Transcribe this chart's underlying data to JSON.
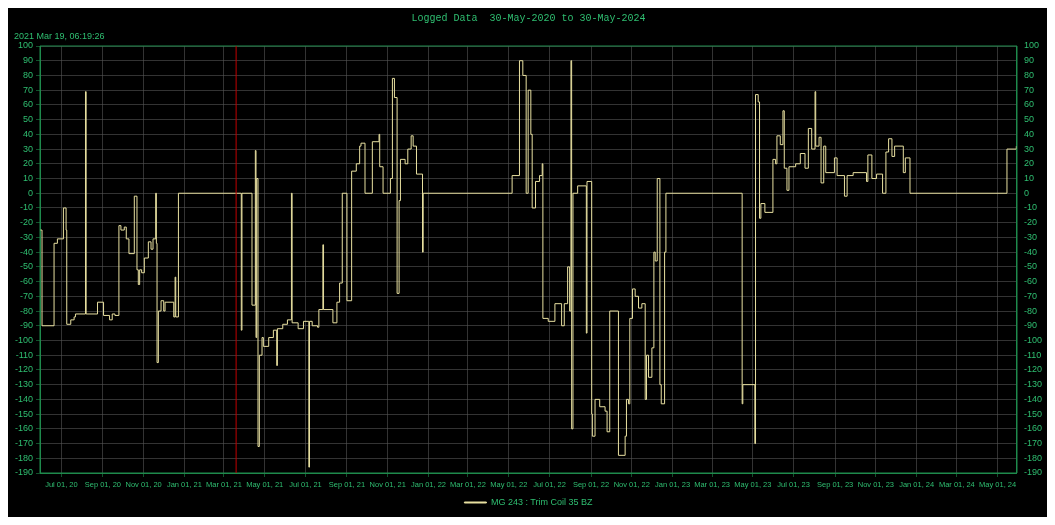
{
  "chart_data": {
    "type": "step",
    "title": "Logged Data  30-May-2020 to 30-May-2024",
    "xlim": [
      "2020-05-30",
      "2024-05-30"
    ],
    "xticks": [
      {
        "value": "2020-07-01",
        "label": "Jul 01, 20"
      },
      {
        "value": "2020-09-01",
        "label": "Sep 01, 20"
      },
      {
        "value": "2020-11-01",
        "label": "Nov 01, 20"
      },
      {
        "value": "2021-01-01",
        "label": "Jan 01, 21"
      },
      {
        "value": "2021-03-01",
        "label": "Mar 01, 21"
      },
      {
        "value": "2021-05-01",
        "label": "May 01, 21"
      },
      {
        "value": "2021-07-01",
        "label": "Jul 01, 21"
      },
      {
        "value": "2021-09-01",
        "label": "Sep 01, 21"
      },
      {
        "value": "2021-11-01",
        "label": "Nov 01, 21"
      },
      {
        "value": "2022-01-01",
        "label": "Jan 01, 22"
      },
      {
        "value": "2022-03-01",
        "label": "Mar 01, 22"
      },
      {
        "value": "2022-05-01",
        "label": "May 01, 22"
      },
      {
        "value": "2022-07-01",
        "label": "Jul 01, 22"
      },
      {
        "value": "2022-09-01",
        "label": "Sep 01, 22"
      },
      {
        "value": "2022-11-01",
        "label": "Nov 01, 22"
      },
      {
        "value": "2023-01-01",
        "label": "Jan 01, 23"
      },
      {
        "value": "2023-03-01",
        "label": "Mar 01, 23"
      },
      {
        "value": "2023-05-01",
        "label": "May 01, 23"
      },
      {
        "value": "2023-07-01",
        "label": "Jul 01, 23"
      },
      {
        "value": "2023-09-01",
        "label": "Sep 01, 23"
      },
      {
        "value": "2023-11-01",
        "label": "Nov 01, 23"
      },
      {
        "value": "2024-01-01",
        "label": "Jan 01, 24"
      },
      {
        "value": "2024-03-01",
        "label": "Mar 01, 24"
      },
      {
        "value": "2024-05-01",
        "label": "May 01, 24"
      }
    ],
    "ylim": [
      -190,
      100
    ],
    "yticks": [
      -190,
      -180,
      -170,
      -160,
      -150,
      -140,
      -130,
      -120,
      -110,
      -100,
      -90,
      -80,
      -70,
      -60,
      -50,
      -40,
      -30,
      -20,
      -10,
      0,
      10,
      20,
      30,
      40,
      50,
      60,
      70,
      80,
      90,
      100
    ],
    "y2lim": [
      -190,
      100
    ],
    "y2ticks": [
      -190,
      -180,
      -170,
      -160,
      -150,
      -140,
      -130,
      -120,
      -110,
      -100,
      -90,
      -80,
      -70,
      -60,
      -50,
      -40,
      -30,
      -20,
      -10,
      0,
      10,
      20,
      30,
      40,
      50,
      60,
      70,
      80,
      90,
      100
    ],
    "grid": true,
    "legend": "bottom",
    "annotations": [
      "2021 Mar 19, 06:19:26"
    ],
    "ref_lines": [
      {
        "axis": "x",
        "value": "2021-03-19T06:19",
        "color": "#c00000"
      }
    ],
    "series": [
      {
        "name": "MG 243 : Trim Coil 35 BZ",
        "color": "#e8e0a0",
        "x": [
          "2020-05-30",
          "2020-06-02",
          "2020-06-20",
          "2020-06-25",
          "2020-07-04",
          "2020-07-08",
          "2020-07-09",
          "2020-07-15",
          "2020-07-20",
          "2020-07-22",
          "2020-08-06",
          "2020-08-07",
          "2020-08-24",
          "2020-09-02",
          "2020-09-11",
          "2020-09-15",
          "2020-09-19",
          "2020-09-25",
          "2020-09-28",
          "2020-10-03",
          "2020-10-06",
          "2020-10-10",
          "2020-10-18",
          "2020-10-22",
          "2020-10-24",
          "2020-10-26",
          "2020-10-29",
          "2020-11-02",
          "2020-11-08",
          "2020-11-12",
          "2020-11-15",
          "2020-11-19",
          "2020-11-20",
          "2020-11-21",
          "2020-11-23",
          "2020-11-27",
          "2020-12-01",
          "2020-12-03",
          "2020-12-16",
          "2020-12-18",
          "2020-12-19",
          "2020-12-23",
          "2021-03-27",
          "2021-03-28",
          "2021-04-12",
          "2021-04-17",
          "2021-04-18",
          "2021-04-19",
          "2021-04-21",
          "2021-04-23",
          "2021-04-27",
          "2021-04-29",
          "2021-05-07",
          "2021-05-14",
          "2021-05-19",
          "2021-05-20",
          "2021-05-28",
          "2021-06-04",
          "2021-06-10",
          "2021-06-11",
          "2021-06-20",
          "2021-06-28",
          "2021-07-06",
          "2021-07-07",
          "2021-07-11",
          "2021-07-19",
          "2021-07-21",
          "2021-07-27",
          "2021-07-28",
          "2021-08-11",
          "2021-08-17",
          "2021-08-21",
          "2021-08-25",
          "2021-09-01",
          "2021-09-08",
          "2021-09-15",
          "2021-09-20",
          "2021-09-22",
          "2021-09-28",
          "2021-10-09",
          "2021-10-19",
          "2021-10-20",
          "2021-10-25",
          "2021-11-05",
          "2021-11-08",
          "2021-11-11",
          "2021-11-15",
          "2021-11-18",
          "2021-11-20",
          "2021-11-27",
          "2021-12-01",
          "2021-12-06",
          "2021-12-09",
          "2021-12-14",
          "2021-12-23",
          "2021-12-24",
          "2022-05-06",
          "2022-05-17",
          "2022-05-22",
          "2022-05-27",
          "2022-05-30",
          "2022-06-03",
          "2022-06-05",
          "2022-06-10",
          "2022-06-16",
          "2022-06-20",
          "2022-06-21",
          "2022-06-29",
          "2022-07-09",
          "2022-07-19",
          "2022-07-23",
          "2022-07-28",
          "2022-07-31",
          "2022-08-02",
          "2022-08-03",
          "2022-08-05",
          "2022-08-12",
          "2022-08-25",
          "2022-08-26",
          "2022-09-02",
          "2022-09-03",
          "2022-09-07",
          "2022-09-14",
          "2022-09-22",
          "2022-09-25",
          "2022-09-29",
          "2022-10-12",
          "2022-10-22",
          "2022-10-24",
          "2022-10-27",
          "2022-10-29",
          "2022-11-02",
          "2022-11-06",
          "2022-11-11",
          "2022-11-16",
          "2022-11-21",
          "2022-11-23",
          "2022-11-26",
          "2022-12-01",
          "2022-12-04",
          "2022-12-06",
          "2022-12-09",
          "2022-12-13",
          "2022-12-15",
          "2022-12-20",
          "2022-12-22",
          "2023-04-15",
          "2023-04-16",
          "2023-05-04",
          "2023-05-05",
          "2023-05-09",
          "2023-05-11",
          "2023-05-13",
          "2023-05-19",
          "2023-05-31",
          "2023-06-04",
          "2023-06-06",
          "2023-06-11",
          "2023-06-15",
          "2023-06-17",
          "2023-06-21",
          "2023-06-24",
          "2023-07-04",
          "2023-07-11",
          "2023-07-18",
          "2023-07-23",
          "2023-07-28",
          "2023-08-02",
          "2023-08-03",
          "2023-08-08",
          "2023-08-11",
          "2023-08-15",
          "2023-08-18",
          "2023-08-31",
          "2023-09-04",
          "2023-09-15",
          "2023-09-19",
          "2023-09-28",
          "2023-10-18",
          "2023-10-20",
          "2023-10-26",
          "2023-11-02",
          "2023-11-11",
          "2023-11-16",
          "2023-11-20",
          "2023-11-25",
          "2023-11-29",
          "2023-12-12",
          "2023-12-15",
          "2023-12-22",
          "2024-05-15",
          "2024-05-29"
        ],
        "values": [
          -25,
          -90,
          -34,
          -31,
          -10,
          -25,
          -89,
          -86,
          -84,
          -82,
          69,
          -82,
          -74,
          -83,
          -86,
          -82,
          -83,
          -22,
          -25,
          -23,
          -31,
          -41,
          -2,
          -52,
          -62,
          -52,
          -54,
          -44,
          -33,
          -38,
          -31,
          0,
          -34,
          -115,
          -80,
          -73,
          -80,
          -74,
          -84,
          -57,
          -84,
          0,
          -93,
          0,
          -76,
          29,
          -98,
          10,
          -172,
          -110,
          -98,
          -104,
          -98,
          -93,
          -117,
          -92,
          -89,
          -86,
          0,
          -88,
          -92,
          -87,
          -186,
          -87,
          -90,
          -91,
          -79,
          -35,
          -79,
          -88,
          -74,
          -61,
          0,
          -73,
          15,
          20,
          32,
          34,
          0,
          35,
          40,
          18,
          0,
          10,
          78,
          65,
          -68,
          -5,
          23,
          20,
          30,
          39,
          32,
          13,
          -40,
          0,
          12,
          90,
          80,
          0,
          70,
          40,
          -10,
          8,
          12,
          20,
          -85,
          -87,
          -75,
          -90,
          -75,
          -50,
          -80,
          90,
          -160,
          0,
          5,
          -95,
          8,
          -150,
          -165,
          -140,
          -145,
          -148,
          -162,
          -80,
          -178,
          -165,
          -140,
          -143,
          -85,
          -65,
          -70,
          -78,
          -75,
          -140,
          -110,
          -125,
          -105,
          -40,
          -46,
          10,
          -130,
          -143,
          -40,
          0,
          -143,
          -130,
          -170,
          67,
          62,
          -17,
          -7,
          -13,
          23,
          20,
          39,
          33,
          56,
          17,
          2,
          18,
          20,
          27,
          17,
          44,
          30,
          69,
          32,
          38,
          7,
          32,
          14,
          24,
          12,
          -2,
          12,
          14,
          8,
          26,
          10,
          13,
          0,
          28,
          37,
          25,
          32,
          14,
          24,
          0,
          30,
          32
        ]
      }
    ]
  }
}
